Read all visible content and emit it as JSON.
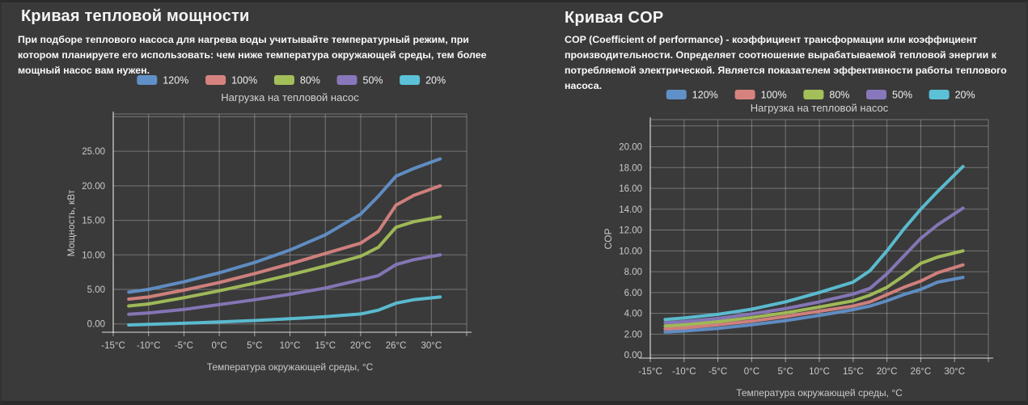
{
  "page": {
    "background": "#3a3a3a",
    "edge": "#2b2b2b"
  },
  "colors": {
    "series_120": "#6190c8",
    "series_100": "#d6837f",
    "series_80": "#a4bf59",
    "series_50": "#8878bb",
    "series_20": "#5cc1d6",
    "text_primary": "#f5f5f5",
    "text_muted": "#c9c9c9",
    "chart_title": "#d2d2d2",
    "grid": "rgba(255,255,255,0.30)",
    "axis": "rgba(255,255,255,0.55)"
  },
  "panels": [
    {
      "title": "Кривая тепловой мощности",
      "description": "При подборе теплового насоса для нагрева воды учитывайте температурный режим, при котором планируете его использовать: чем ниже температура окружающей среды, тем более мощный насос вам нужен."
    },
    {
      "title": "Кривая COP",
      "description": "COP (Coefficient of performance) - коэффициент трансформации или коэффициент производительности. Определяет соотношение вырабатываемой тепловой энергии к потребляемой электрической. Является показателем эффективности работы теплового насоса."
    }
  ],
  "chart_data": [
    {
      "type": "line",
      "title": "Нагрузка на тепловой насос",
      "xlabel": "Температура окружающей среды, °C",
      "ylabel": "Мощность, кВт",
      "legend_position": "top",
      "grid": true,
      "x_tick_labels": [
        "-15°C",
        "-10°C",
        "-5°C",
        "0°C",
        "5°C",
        "10°C",
        "15°C",
        "20°C",
        "26°C",
        "30°C"
      ],
      "x_tick_values": [
        -15,
        -10,
        -5,
        0,
        5,
        10,
        15,
        20,
        26,
        30
      ],
      "ylim": [
        -1.2,
        30.4
      ],
      "y_grid_step": 5,
      "y_grid_max": 30,
      "y_label_step": 5,
      "y_label_max": 25,
      "x": [
        -12.8,
        -10,
        -5,
        0,
        5,
        10,
        15,
        20,
        23,
        26,
        28,
        31
      ],
      "series": [
        {
          "name": "120%",
          "color": "#6190c8",
          "values": [
            4.6,
            5.0,
            6.1,
            7.4,
            8.9,
            10.7,
            12.9,
            15.9,
            18.5,
            21.4,
            22.5,
            23.9
          ]
        },
        {
          "name": "100%",
          "color": "#d6837f",
          "values": [
            3.6,
            3.9,
            4.9,
            6.0,
            7.3,
            8.7,
            10.2,
            11.7,
            13.4,
            17.2,
            18.6,
            20.0
          ]
        },
        {
          "name": "80%",
          "color": "#a4bf59",
          "values": [
            2.6,
            2.9,
            3.8,
            4.8,
            5.9,
            7.1,
            8.4,
            9.8,
            11.1,
            14.0,
            14.8,
            15.5
          ]
        },
        {
          "name": "50%",
          "color": "#8878bb",
          "values": [
            1.4,
            1.6,
            2.1,
            2.8,
            3.5,
            4.3,
            5.2,
            6.4,
            7.0,
            8.6,
            9.3,
            10.0
          ]
        },
        {
          "name": "20%",
          "color": "#5cc1d6",
          "values": [
            -0.15,
            -0.05,
            0.1,
            0.3,
            0.5,
            0.75,
            1.05,
            1.45,
            2.0,
            3.0,
            3.5,
            3.9
          ]
        }
      ]
    },
    {
      "type": "line",
      "title": "Нагрузка на тепловой насос",
      "xlabel": "Температура окружающей среды, °C",
      "ylabel": "COP",
      "legend_position": "top",
      "grid": true,
      "x_tick_labels": [
        "-15°C",
        "-10°C",
        "-5°C",
        "0°C",
        "5°C",
        "10°C",
        "15°C",
        "20°C",
        "26°C",
        "30°C"
      ],
      "x_tick_values": [
        -15,
        -10,
        -5,
        0,
        5,
        10,
        15,
        20,
        26,
        30
      ],
      "ylim": [
        -0.3,
        22.6
      ],
      "y_grid_step": 2,
      "y_grid_max": 22,
      "y_label_step": 2,
      "y_label_max": 20,
      "x": [
        -12.8,
        -10,
        -5,
        0,
        5,
        10,
        15,
        17.5,
        20,
        23,
        26,
        28,
        31
      ],
      "series": [
        {
          "name": "120%",
          "color": "#6190c8",
          "values": [
            2.2,
            2.3,
            2.55,
            2.9,
            3.3,
            3.8,
            4.35,
            4.7,
            5.2,
            5.8,
            6.3,
            7.0,
            7.45
          ]
        },
        {
          "name": "100%",
          "color": "#d6837f",
          "values": [
            2.5,
            2.6,
            2.9,
            3.25,
            3.7,
            4.2,
            4.7,
            5.1,
            5.8,
            6.5,
            7.1,
            7.9,
            8.65
          ]
        },
        {
          "name": "80%",
          "color": "#a4bf59",
          "values": [
            2.8,
            2.9,
            3.2,
            3.6,
            4.05,
            4.6,
            5.2,
            5.75,
            6.5,
            7.6,
            8.8,
            9.4,
            10.0
          ]
        },
        {
          "name": "50%",
          "color": "#8878bb",
          "values": [
            3.1,
            3.2,
            3.5,
            3.95,
            4.45,
            5.1,
            5.85,
            6.4,
            7.8,
            9.5,
            11.2,
            12.5,
            14.1
          ]
        },
        {
          "name": "20%",
          "color": "#5cc1d6",
          "values": [
            3.4,
            3.55,
            3.9,
            4.4,
            5.1,
            6.0,
            7.0,
            8.1,
            10.0,
            12.1,
            14.0,
            15.7,
            18.1
          ]
        }
      ]
    }
  ]
}
